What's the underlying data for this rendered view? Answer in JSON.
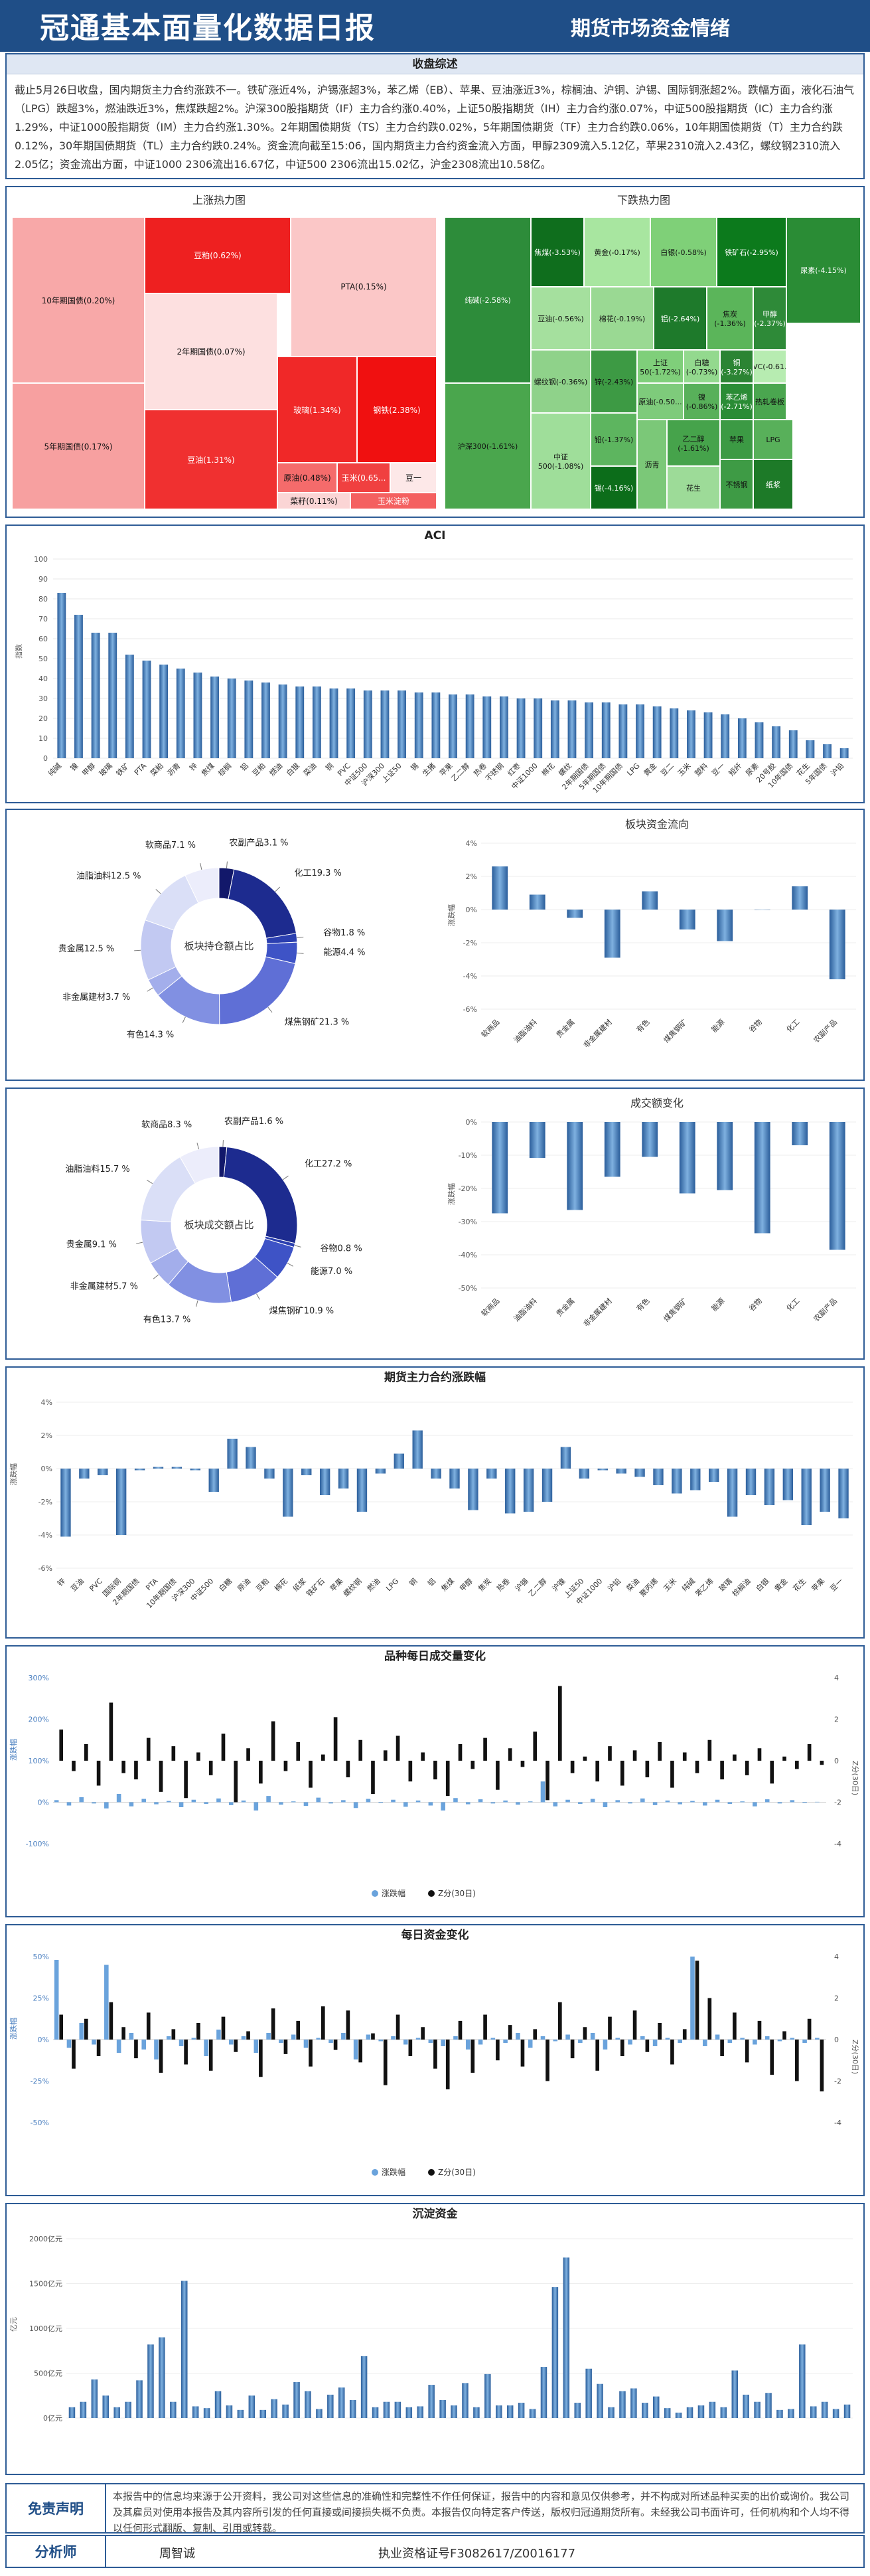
{
  "header": {
    "title": "冠通基本面量化数据日报",
    "subtitle": "期货市场资金情绪"
  },
  "summary": {
    "title": "收盘综述",
    "text": "截止5月26日收盘，国内期货主力合约涨跌不一。铁矿涨近4%，沪锡涨超3%，苯乙烯（EB）、苹果、豆油涨近3%，棕榈油、沪铜、沪锡、国际铜涨超2%。跌幅方面，液化石油气（LPG）跌超3%，燃油跌近3%，焦煤跌超2%。沪深300股指期货（IF）主力合约涨0.40%，上证50股指期货（IH）主力合约涨0.07%，中证500股指期货（IC）主力合约涨1.29%，中证1000股指期货（IM）主力合约涨1.30%。2年期国债期货（TS）主力合约跌0.02%，5年期国债期货（TF）主力合约跌0.06%，10年期国债期货（T）主力合约跌0.12%，30年期国债期货（TL）主力合约跌0.24%。资金流向截至15:06，国内期货主力合约资金流入方面，甲醇2309流入5.12亿，苹果2310流入2.43亿，螺纹钢2310流入2.05亿；资金流出方面，中证1000 2306流出16.67亿，中证500 2306流出15.02亿，沪金2308流出10.58亿。"
  },
  "heatmap": {
    "title": "热力图",
    "up_title": "上涨热力图",
    "down_title": "下跌热力图",
    "up_tiles": [
      {
        "label": "10年期国债(0.20%)"
      },
      {
        "label": "5年期国债(0.17%)"
      },
      {
        "label": "豆粕(0.62%)"
      },
      {
        "label": "PTA(0.15%)"
      },
      {
        "label": "2年期国债(0.07%)"
      },
      {
        "label": "玻璃(1.34%)"
      },
      {
        "label": "钢铁(2.38%)"
      },
      {
        "label": "豆油(1.31%)"
      },
      {
        "label": "原油(0.48%)"
      },
      {
        "label": "玉米(0.65..."
      },
      {
        "label": "豆一"
      },
      {
        "label": "菜籽(0.11%)"
      },
      {
        "label": "玉米淀粉"
      }
    ],
    "down_tiles": [
      {
        "label": "焦煤(-3.53%)"
      },
      {
        "label": "黄金(-0.17%)"
      },
      {
        "label": "白银(-0.58%)"
      },
      {
        "label": "铁矿石(-2.95%)"
      },
      {
        "label": "纯碱(-2.58%)"
      },
      {
        "label": "豆油(-0.56%)"
      },
      {
        "label": "棉花(-0.19%)"
      },
      {
        "label": "铝(-2.64%)"
      },
      {
        "label": "焦炭(-1.36%)"
      },
      {
        "label": "甲醇(-2.37%)"
      },
      {
        "label": "螺纹钢(-0.36%)"
      },
      {
        "label": "锌(-2.43%)"
      },
      {
        "label": "上证50(-1.72%)"
      },
      {
        "label": "白糖(-0.73%)"
      },
      {
        "label": "铜(-3.27%)"
      },
      {
        "label": "PVC(-0.61..."
      },
      {
        "label": "沪深300(-1.61%)"
      },
      {
        "label": "中证500(-1.08%)"
      },
      {
        "label": "铅(-1.37%)"
      },
      {
        "label": "原油(-0.50..."
      },
      {
        "label": "镍(-0.86%)"
      },
      {
        "label": "苯乙烯(-2.71%)"
      },
      {
        "label": "热轧卷板"
      },
      {
        "label": "尿素(-4.15%)"
      },
      {
        "label": "锡(-4.16%)"
      },
      {
        "label": "沥青"
      },
      {
        "label": "乙二醇(-1.61%)"
      },
      {
        "label": "苹果"
      },
      {
        "label": "LPG"
      },
      {
        "label": "花生"
      },
      {
        "label": "不锈钢"
      },
      {
        "label": "纸浆"
      }
    ]
  },
  "aci": {
    "title": "ACI",
    "ylabel": "指数",
    "labels": [
      "纯碱",
      "镍",
      "甲醇",
      "玻璃",
      "铁矿",
      "PTA",
      "菜粕",
      "沥青",
      "锌",
      "焦煤",
      "棕榈",
      "铝",
      "豆粕",
      "燃油",
      "白银",
      "菜油",
      "铜",
      "PVC",
      "中证500",
      "沪深300",
      "上证50",
      "锡",
      "生猪",
      "苹果",
      "乙二醇",
      "热卷",
      "不锈钢",
      "红枣",
      "中证1000",
      "棉花",
      "螺纹",
      "2年期国债",
      "5年期国债",
      "10年期国债",
      "LPG",
      "黄金",
      "豆二",
      "玉米",
      "塑料",
      "豆一",
      "短纤",
      "尿素",
      "20号胶",
      "10年国债",
      "花生",
      "5年国债",
      "沪铅"
    ]
  },
  "sector_hold": {
    "title": "板块持仓额占比",
    "labels": [
      "农副产品3.1 %",
      "化工19.3 %",
      "谷物1.8 %",
      "能源4.4 %",
      "煤焦钢矿21.3 %",
      "有色14.3 %",
      "非金属建材3.7 %",
      "贵金属12.5 %",
      "油脂油料12.5 %",
      "软商品7.1 %"
    ]
  },
  "sector_flow": {
    "title": "板块资金流向",
    "ylabel": "涨跌幅",
    "categories": [
      "软商品",
      "油脂油料",
      "贵金属",
      "非金属建材",
      "有色",
      "煤焦钢矿",
      "能源",
      "谷物",
      "化工",
      "农副产品"
    ],
    "ticks": [
      "4%",
      "2%",
      "0%",
      "-2%",
      "-4%",
      "-6%"
    ]
  },
  "sector_turnover": {
    "title": "板块成交额占比",
    "labels": [
      "农副产品1.6 %",
      "化工27.2 %",
      "谷物0.8 %",
      "能源7.0 %",
      "煤焦钢矿10.9 %",
      "有色13.7 %",
      "非金属建材5.7 %",
      "贵金属9.1 %",
      "油脂油料15.7 %",
      "软商品8.3 %"
    ]
  },
  "turnover_change": {
    "title": "成交额变化",
    "ylabel": "涨跌幅",
    "categories": [
      "软商品",
      "油脂油料",
      "贵金属",
      "非金属建材",
      "有色",
      "煤焦钢矿",
      "能源",
      "谷物",
      "化工",
      "农副产品"
    ],
    "ticks": [
      "0%",
      "-10%",
      "-20%",
      "-30%",
      "-40%",
      "-50%"
    ]
  },
  "contract_change": {
    "title": "期货主力合约涨跌幅",
    "ylabel": "涨跌幅",
    "ticks": [
      "4%",
      "2%",
      "0%",
      "-2%",
      "-4%",
      "-6%"
    ],
    "labels": [
      "锌",
      "豆油",
      "PVC",
      "国际铜",
      "2年期国债",
      "PTA",
      "10年期国债",
      "沪深300",
      "中证500",
      "白糖",
      "原油",
      "豆粕",
      "棉花",
      "纸浆",
      "铁矿石",
      "苹果",
      "螺纹钢",
      "燃油",
      "LPG",
      "铜",
      "铝",
      "焦煤",
      "甲醇",
      "焦炭",
      "热卷",
      "沪锡",
      "乙二醇",
      "沪镍",
      "上证50",
      "中证1000",
      "沪铅",
      "菜油",
      "聚丙烯",
      "玉米",
      "纯碱",
      "苯乙烯",
      "玻璃",
      "棕榈油",
      "白银",
      "黄金",
      "花生",
      "苹果",
      "豆一"
    ]
  },
  "volume_change": {
    "title": "品种每日成交量变化",
    "ylabel": "涨跌幅",
    "y2label": "Z分(30日)",
    "ticks_left": [
      "300%",
      "200%",
      "100%",
      "0%",
      "-100%"
    ],
    "ticks_right": [
      "4",
      "2",
      "0",
      "-2",
      "-4"
    ],
    "legend": [
      "涨跌幅",
      "Z分(30日)"
    ]
  },
  "fund_change": {
    "title": "每日资金变化",
    "ylabel": "涨跌幅",
    "y2label": "Z分(30日)",
    "ticks_left": [
      "50%",
      "25%",
      "0%",
      "-25%",
      "-50%"
    ],
    "ticks_right": [
      "4",
      "2",
      "0",
      "-2",
      "-4"
    ],
    "legend": [
      "涨跌幅",
      "Z分(30日)"
    ]
  },
  "sediment": {
    "title": "沉淀资金",
    "ylabel": "亿元",
    "ticks": [
      "2000亿元",
      "1500亿元",
      "1000亿元",
      "500亿元",
      "0亿元"
    ]
  },
  "footer": {
    "disclaimer_label": "免责声明",
    "disclaimer": "本报告中的信息均来源于公开资料，我公司对这些信息的准确性和完整性不作任何保证，报告中的内容和意见仅供参考，并不构成对所述品种买卖的出价或询价。我公司及其雇员对使用本报告及其内容所引发的任何直接或间接损失概不负责。本报告仅向特定客户传送，版权归冠通期货所有。未经我公司书面许可，任何机构和个人均不得以任何形式翻版、复制、引用或转载。",
    "analyst_label": "分析师",
    "analyst_name": "周智诚",
    "license": "执业资格证号F3082617/Z0016177"
  },
  "chart_data": [
    {
      "type": "bar",
      "title": "ACI",
      "ylabel": "指数",
      "ylim": [
        0,
        100
      ],
      "categories": [
        "纯碱",
        "镍",
        "甲醇",
        "玻璃",
        "铁矿",
        "PTA",
        "菜粕",
        "沥青",
        "锌",
        "焦煤",
        "棕榈",
        "铝",
        "豆粕",
        "燃油",
        "白银",
        "菜油",
        "铜",
        "PVC",
        "中证500",
        "沪深300",
        "上证50",
        "锡",
        "生猪",
        "苹果",
        "乙二醇",
        "热卷",
        "不锈钢",
        "红枣",
        "中证1000",
        "棉花",
        "螺纹",
        "2年期国债",
        "5年期国债",
        "10年期国债",
        "LPG",
        "黄金",
        "豆二",
        "玉米",
        "塑料",
        "豆一",
        "短纤",
        "尿素",
        "20号胶",
        "10年国债",
        "花生",
        "5年国债",
        "沪铅"
      ],
      "values": [
        83,
        72,
        63,
        63,
        52,
        49,
        47,
        45,
        43,
        41,
        40,
        39,
        38,
        37,
        36,
        36,
        35,
        35,
        34,
        34,
        34,
        33,
        33,
        32,
        32,
        31,
        31,
        30,
        30,
        29,
        29,
        28,
        28,
        27,
        27,
        26,
        25,
        24,
        23,
        22,
        20,
        18,
        16,
        14,
        9,
        7,
        5
      ]
    },
    {
      "type": "pie",
      "title": "板块持仓额占比",
      "categories": [
        "农副产品",
        "化工",
        "谷物",
        "能源",
        "煤焦钢矿",
        "有色",
        "非金属建材",
        "贵金属",
        "油脂油料",
        "软商品"
      ],
      "values": [
        3.1,
        19.3,
        1.8,
        4.4,
        21.3,
        14.3,
        3.7,
        12.5,
        12.5,
        7.1
      ]
    },
    {
      "type": "bar",
      "title": "板块资金流向",
      "ylabel": "涨跌幅",
      "ylim": [
        -6,
        4
      ],
      "categories": [
        "软商品",
        "油脂油料",
        "贵金属",
        "非金属建材",
        "有色",
        "煤焦钢矿",
        "能源",
        "谷物",
        "化工",
        "农副产品"
      ],
      "values": [
        2.6,
        0.9,
        -0.5,
        -2.9,
        1.1,
        -1.2,
        -1.9,
        0.0,
        1.4,
        -4.2
      ]
    },
    {
      "type": "pie",
      "title": "板块成交额占比",
      "categories": [
        "农副产品",
        "化工",
        "谷物",
        "能源",
        "煤焦钢矿",
        "有色",
        "非金属建材",
        "贵金属",
        "油脂油料",
        "软商品"
      ],
      "values": [
        1.6,
        27.2,
        0.8,
        7.0,
        10.9,
        13.7,
        5.7,
        9.1,
        15.7,
        8.3
      ]
    },
    {
      "type": "bar",
      "title": "成交额变化",
      "ylabel": "涨跌幅",
      "ylim": [
        -50,
        0
      ],
      "categories": [
        "软商品",
        "油脂油料",
        "贵金属",
        "非金属建材",
        "有色",
        "煤焦钢矿",
        "能源",
        "谷物",
        "化工",
        "农副产品"
      ],
      "values": [
        -27.5,
        -10.8,
        -26.5,
        -16.5,
        -10.5,
        -21.5,
        -20.5,
        -33.5,
        -7.0,
        -38.5
      ]
    },
    {
      "type": "bar",
      "title": "期货主力合约涨跌幅",
      "ylabel": "涨跌幅",
      "ylim": [
        -6,
        4
      ],
      "categories": [
        "锌",
        "豆油",
        "PVC",
        "国际铜",
        "2年期国债",
        "PTA",
        "10年期国债",
        "沪深300",
        "中证500",
        "白糖",
        "原油",
        "豆粕",
        "棉花",
        "纸浆",
        "铁矿石",
        "苹果",
        "螺纹钢",
        "燃油",
        "LPG",
        "铜",
        "铝",
        "焦煤",
        "甲醇",
        "焦炭",
        "热卷",
        "沪锡",
        "乙二醇",
        "沪镍",
        "上证50",
        "中证1000",
        "沪铅",
        "菜油",
        "聚丙烯",
        "玉米",
        "纯碱",
        "苯乙烯",
        "玻璃",
        "棕榈油",
        "白银",
        "黄金",
        "花生",
        "苹果",
        "豆一"
      ],
      "values": [
        -4.1,
        -0.6,
        -0.4,
        -4.0,
        -0.1,
        0.1,
        0.1,
        -0.1,
        -1.4,
        1.8,
        1.3,
        -0.6,
        -2.9,
        -0.4,
        -1.6,
        -1.2,
        -2.6,
        -0.3,
        0.9,
        2.3,
        -0.6,
        -1.2,
        -2.5,
        -0.6,
        -2.7,
        -2.6,
        -2.0,
        1.3,
        -0.6,
        -0.1,
        -0.3,
        -0.5,
        -1.0,
        -1.5,
        -1.3,
        -0.8,
        -2.9,
        -1.6,
        -2.2,
        -1.9,
        -3.4,
        -2.6,
        -3.0
      ]
    },
    {
      "type": "bar",
      "title": "品种每日成交量变化",
      "series": [
        {
          "name": "涨跌幅",
          "values": [
            5,
            -8,
            12,
            -3,
            -15,
            20,
            -10,
            8,
            -5,
            3,
            -12,
            6,
            -4,
            9,
            -7,
            4,
            -20,
            15,
            -6,
            2,
            -9,
            11,
            -3,
            5,
            -14,
            8,
            -2,
            6,
            -11,
            4,
            -8,
            -20,
            10,
            -5,
            7,
            -3,
            4,
            -6,
            2,
            50,
            -10,
            6,
            -4,
            8,
            -12,
            5,
            -3,
            9,
            -7,
            4,
            -5,
            3,
            -8,
            6,
            -4,
            2,
            -10,
            7,
            -3,
            5,
            -2,
            1
          ]
        },
        {
          "name": "Z分(30日)",
          "values": [
            1.5,
            -0.5,
            0.8,
            -1.2,
            2.8,
            -0.6,
            -0.9,
            1.1,
            -1.5,
            0.7,
            -1.8,
            0.4,
            -0.7,
            1.3,
            -2.0,
            0.6,
            -1.1,
            1.9,
            -0.5,
            0.9,
            -1.3,
            0.3,
            2.1,
            -0.8,
            1.0,
            -1.6,
            0.5,
            1.2,
            -1.0,
            0.4,
            -0.9,
            -1.7,
            0.8,
            -0.4,
            1.1,
            -1.4,
            0.6,
            -0.3,
            1.4,
            -1.9,
            3.6,
            -0.6,
            0.2,
            -1.0,
            0.7,
            -1.2,
            0.5,
            -0.8,
            0.9,
            -1.3,
            0.4,
            -0.6,
            1.0,
            -0.9,
            0.3,
            -0.7,
            0.6,
            -1.1,
            0.2,
            -0.4,
            0.8,
            -0.2
          ]
        }
      ]
    },
    {
      "type": "bar",
      "title": "每日资金变化",
      "series": [
        {
          "name": "涨跌幅",
          "values": [
            48,
            -5,
            10,
            -3,
            45,
            -8,
            4,
            -6,
            -12,
            2,
            -4,
            1,
            -10,
            6,
            -3,
            2,
            -8,
            4,
            -2,
            3,
            -5,
            1,
            -2,
            4,
            -12,
            3,
            -1,
            2,
            -3,
            1,
            -2,
            -4,
            2,
            -6,
            -3,
            1,
            -2,
            4,
            -5,
            2,
            -1,
            3,
            -2,
            4,
            -6,
            1,
            -3,
            2,
            -4,
            1,
            -2,
            50,
            -4,
            3,
            -2,
            1,
            -3,
            2,
            -1,
            1,
            -2,
            1
          ]
        },
        {
          "name": "Z分(30日)",
          "values": [
            1.2,
            -1.4,
            1.0,
            -0.8,
            1.8,
            0.6,
            -0.9,
            1.3,
            -1.6,
            0.5,
            -1.2,
            0.8,
            -1.5,
            1.1,
            -0.6,
            0.4,
            -1.8,
            1.5,
            -0.7,
            0.9,
            -1.3,
            1.6,
            -0.5,
            1.4,
            -1.1,
            0.3,
            -2.2,
            1.2,
            -0.8,
            0.6,
            -1.4,
            -2.4,
            0.9,
            -1.6,
            1.2,
            -1.0,
            0.7,
            -1.3,
            0.5,
            -2.0,
            1.8,
            -0.9,
            0.6,
            -1.5,
            1.1,
            -0.8,
            1.4,
            -0.6,
            0.8,
            -1.2,
            0.5,
            3.8,
            2.0,
            -0.8,
            1.3,
            -1.1,
            0.9,
            -1.7,
            0.4,
            -2.0,
            1.0,
            -2.5
          ]
        }
      ]
    },
    {
      "type": "bar",
      "title": "沉淀资金",
      "ylabel": "亿元",
      "ylim": [
        0,
        2000
      ],
      "values": [
        120,
        180,
        430,
        250,
        120,
        180,
        420,
        820,
        900,
        180,
        1530,
        130,
        110,
        300,
        140,
        90,
        250,
        90,
        210,
        150,
        400,
        300,
        100,
        260,
        340,
        200,
        690,
        120,
        180,
        180,
        120,
        130,
        370,
        200,
        140,
        390,
        120,
        490,
        140,
        140,
        170,
        100,
        570,
        1460,
        1790,
        170,
        550,
        380,
        120,
        300,
        330,
        170,
        240,
        110,
        60,
        120,
        140,
        180,
        120,
        530,
        260,
        180,
        280,
        90,
        100,
        820,
        130,
        180,
        100,
        150
      ]
    }
  ]
}
